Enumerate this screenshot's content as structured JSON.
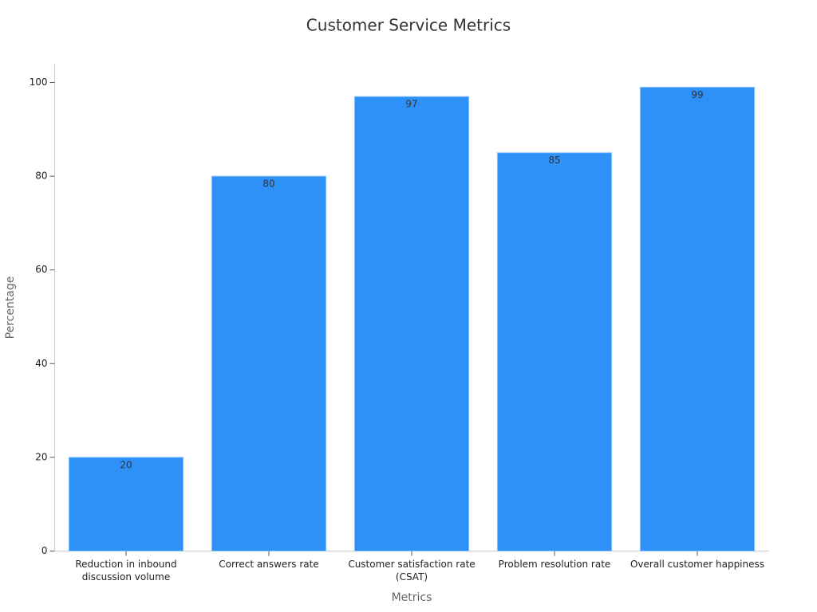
{
  "chart_data": {
    "type": "bar",
    "title": "Customer Service Metrics",
    "x_label": "Metrics",
    "y_label": "Percentage",
    "categories": [
      "Reduction in inbound discussion volume",
      "Correct answers rate",
      "Customer satisfaction rate (CSAT)",
      "Problem resolution rate",
      "Overall customer happiness"
    ],
    "values": [
      20,
      80,
      97,
      85,
      99
    ],
    "color": "#2e91f7",
    "ylim": [
      0,
      104
    ],
    "yticks": [
      0,
      20,
      40,
      60,
      80,
      100
    ]
  }
}
